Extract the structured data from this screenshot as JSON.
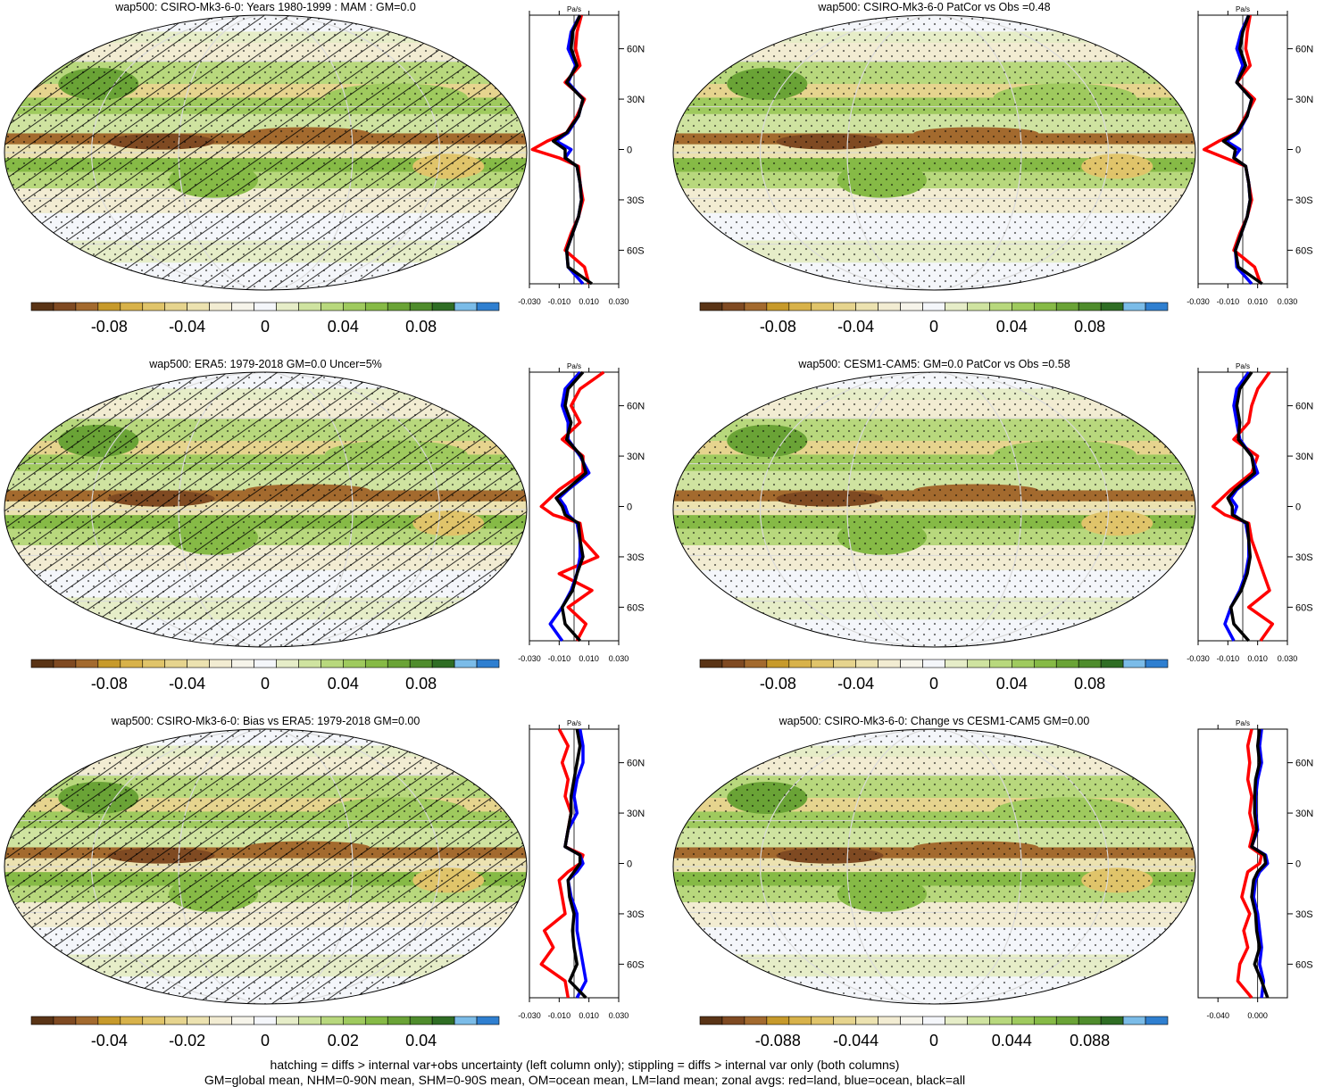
{
  "colors": {
    "background": "#ffffff",
    "land_line": "#d9d9d9",
    "zonal_land": "#ff0000",
    "zonal_ocean": "#0000ff",
    "zonal_all": "#000000",
    "palette": [
      "#5a3416",
      "#7f4a22",
      "#a36a2e",
      "#c79a2b",
      "#d8b24a",
      "#e0c46a",
      "#e6d48e",
      "#ece2b0",
      "#f2ecd2",
      "#f6f4ea",
      "#f4f6fa",
      "#e6edc8",
      "#cfe3a0",
      "#b8d87d",
      "#9fca5e",
      "#86ba46",
      "#6aa336",
      "#4f8c2c",
      "#2f6d24",
      "#7bbce8",
      "#2f7fd0"
    ]
  },
  "footer": {
    "line1": "hatching = diffs > internal var+obs uncertainty (left column only); stippling = diffs > internal var only (both columns)",
    "line2": "GM=global mean, NHM=0-90N mean, SHM=0-90S mean, OM=ocean mean, LM=land mean; zonal avgs: red=land, blue=ocean, black=all"
  },
  "chart_data": [
    {
      "type": "heatmap",
      "title": "wap500: CSIRO-Mk3-6-0: Years 1980-1999 : MAM : GM=0.0",
      "colorbar_ticks": [
        "-0.08",
        "-0.04",
        "0",
        "0.04",
        "0.08"
      ],
      "colorbar_range": [
        -0.12,
        0.12
      ],
      "hatched": true,
      "zonal": {
        "units": "Pa/s",
        "x_ticks": [
          "-0.030",
          "-0.010",
          "0.010",
          "0.030"
        ],
        "xlim": [
          -0.03,
          0.03
        ],
        "y_ticks": [
          "60N",
          "30N",
          "0",
          "30S",
          "60S"
        ],
        "lat": [
          80,
          70,
          60,
          50,
          40,
          30,
          20,
          10,
          5,
          0,
          -5,
          -10,
          -20,
          -30,
          -40,
          -50,
          -60,
          -70,
          -80
        ],
        "land": [
          0.005,
          0.002,
          0.001,
          0.004,
          -0.006,
          0.007,
          0.002,
          -0.005,
          -0.018,
          -0.028,
          -0.01,
          0.003,
          0.004,
          0.006,
          0.003,
          -0.002,
          -0.006,
          0.007,
          0.01
        ],
        "ocean": [
          0.004,
          -0.002,
          -0.004,
          0.001,
          -0.004,
          0.006,
          0.003,
          -0.004,
          -0.012,
          -0.002,
          -0.006,
          0.002,
          0.004,
          0.005,
          0.003,
          -0.001,
          -0.005,
          -0.004,
          0.006
        ],
        "all": [
          0.004,
          -0.001,
          -0.002,
          0.002,
          -0.005,
          0.006,
          0.003,
          -0.005,
          -0.014,
          -0.006,
          -0.006,
          0.002,
          0.004,
          0.005,
          0.003,
          -0.001,
          -0.005,
          -0.004,
          0.012
        ]
      }
    },
    {
      "type": "heatmap",
      "title": "wap500: CSIRO-Mk3-6-0 PatCor vs Obs =0.48",
      "colorbar_ticks": [
        "-0.08",
        "-0.04",
        "0",
        "0.04",
        "0.08"
      ],
      "colorbar_range": [
        -0.12,
        0.12
      ],
      "hatched": false,
      "zonal": {
        "units": "Pa/s",
        "x_ticks": [
          "-0.030",
          "-0.010",
          "0.010",
          "0.030"
        ],
        "xlim": [
          -0.03,
          0.03
        ],
        "y_ticks": [
          "60N",
          "30N",
          "0",
          "30S",
          "60S"
        ],
        "lat": [
          80,
          70,
          60,
          50,
          40,
          30,
          20,
          10,
          5,
          0,
          -5,
          -10,
          -20,
          -30,
          -40,
          -50,
          -60,
          -70,
          -80
        ],
        "land": [
          0.005,
          0.003,
          0.002,
          0.005,
          -0.004,
          0.008,
          0.002,
          -0.004,
          -0.016,
          -0.026,
          -0.012,
          0.002,
          0.004,
          0.006,
          0.003,
          -0.002,
          -0.006,
          0.008,
          0.012
        ],
        "ocean": [
          0.004,
          -0.001,
          -0.004,
          0.0,
          -0.004,
          0.006,
          0.003,
          -0.003,
          -0.011,
          -0.002,
          -0.006,
          0.002,
          0.004,
          0.005,
          0.003,
          -0.001,
          -0.005,
          -0.004,
          0.006
        ],
        "all": [
          0.004,
          0.0,
          -0.002,
          0.002,
          -0.004,
          0.006,
          0.003,
          -0.004,
          -0.013,
          -0.005,
          -0.006,
          0.002,
          0.004,
          0.005,
          0.003,
          -0.001,
          -0.005,
          -0.003,
          0.013
        ]
      }
    },
    {
      "type": "heatmap",
      "title": "wap500: ERA5: 1979-2018 GM=0.0 Uncer=5%",
      "colorbar_ticks": [
        "-0.08",
        "-0.04",
        "0",
        "0.04",
        "0.08"
      ],
      "colorbar_range": [
        -0.12,
        0.12
      ],
      "hatched": true,
      "zonal": {
        "units": "Pa/s",
        "x_ticks": [
          "-0.030",
          "-0.010",
          "0.010",
          "0.030"
        ],
        "xlim": [
          -0.03,
          0.03
        ],
        "y_ticks": [
          "60N",
          "30N",
          "0",
          "30S",
          "60S"
        ],
        "lat": [
          80,
          70,
          60,
          50,
          40,
          30,
          20,
          10,
          5,
          0,
          -5,
          -10,
          -20,
          -30,
          -40,
          -50,
          -60,
          -70,
          -80
        ],
        "land": [
          0.02,
          0.004,
          -0.002,
          0.004,
          -0.008,
          0.006,
          0.006,
          -0.01,
          -0.016,
          -0.022,
          -0.014,
          0.004,
          0.006,
          0.016,
          -0.01,
          0.012,
          -0.004,
          0.008,
          0.002
        ],
        "ocean": [
          0.004,
          -0.006,
          -0.008,
          -0.004,
          -0.004,
          0.004,
          0.01,
          -0.004,
          -0.01,
          -0.006,
          -0.004,
          0.002,
          0.004,
          0.004,
          0.002,
          -0.002,
          -0.008,
          -0.016,
          -0.008
        ],
        "all": [
          0.006,
          -0.004,
          -0.006,
          -0.002,
          -0.005,
          0.005,
          0.008,
          -0.005,
          -0.012,
          -0.008,
          -0.006,
          0.003,
          0.004,
          0.006,
          0.002,
          -0.001,
          -0.008,
          -0.006,
          0.004
        ]
      }
    },
    {
      "type": "heatmap",
      "title": "wap500: CESM1-CAM5: GM=0.0 PatCor vs Obs =0.58",
      "colorbar_ticks": [
        "-0.08",
        "-0.04",
        "0",
        "0.04",
        "0.08"
      ],
      "colorbar_range": [
        -0.12,
        0.12
      ],
      "hatched": false,
      "zonal": {
        "units": "Pa/s",
        "x_ticks": [
          "-0.030",
          "-0.010",
          "0.010",
          "0.030"
        ],
        "xlim": [
          -0.03,
          0.03
        ],
        "y_ticks": [
          "60N",
          "30N",
          "0",
          "30S",
          "60S"
        ],
        "lat": [
          80,
          70,
          60,
          50,
          40,
          30,
          20,
          10,
          5,
          0,
          -5,
          -10,
          -20,
          -30,
          -40,
          -50,
          -60,
          -70,
          -80
        ],
        "land": [
          0.018,
          0.01,
          0.006,
          0.004,
          -0.006,
          0.01,
          0.006,
          -0.008,
          -0.014,
          -0.02,
          -0.012,
          0.004,
          0.006,
          0.01,
          0.014,
          0.018,
          0.004,
          0.02,
          0.012
        ],
        "ocean": [
          0.004,
          -0.004,
          -0.006,
          -0.004,
          -0.002,
          0.006,
          0.01,
          -0.004,
          -0.008,
          -0.004,
          -0.006,
          0.002,
          0.004,
          0.004,
          0.002,
          -0.002,
          -0.008,
          -0.012,
          -0.006
        ],
        "all": [
          0.006,
          -0.002,
          -0.004,
          -0.002,
          -0.003,
          0.006,
          0.008,
          -0.005,
          -0.01,
          -0.007,
          -0.007,
          0.003,
          0.004,
          0.005,
          0.003,
          -0.001,
          -0.008,
          -0.006,
          0.004
        ]
      }
    },
    {
      "type": "heatmap",
      "title": "wap500: CSIRO-Mk3-6-0: Bias vs ERA5: 1979-2018 GM=0.00",
      "colorbar_ticks": [
        "-0.04",
        "-0.02",
        "0",
        "0.02",
        "0.04"
      ],
      "colorbar_range": [
        -0.06,
        0.06
      ],
      "hatched": true,
      "zonal": {
        "units": "Pa/s",
        "x_ticks": [
          "-0.030",
          "-0.010",
          "0.010",
          "0.030"
        ],
        "xlim": [
          -0.03,
          0.03
        ],
        "y_ticks": [
          "60N",
          "30N",
          "0",
          "30S",
          "60S"
        ],
        "lat": [
          80,
          70,
          60,
          50,
          40,
          30,
          20,
          10,
          5,
          0,
          -5,
          -10,
          -20,
          -30,
          -40,
          -50,
          -60,
          -70,
          -80
        ],
        "land": [
          -0.01,
          -0.004,
          -0.008,
          -0.004,
          -0.006,
          -0.002,
          -0.004,
          -0.006,
          0.006,
          0.004,
          -0.004,
          -0.01,
          -0.008,
          -0.006,
          -0.02,
          -0.014,
          -0.022,
          -0.006,
          -0.004
        ],
        "ocean": [
          0.004,
          0.006,
          0.006,
          0.002,
          0.0,
          0.002,
          -0.004,
          -0.006,
          0.004,
          0.006,
          0.002,
          -0.004,
          -0.002,
          0.002,
          0.002,
          0.004,
          0.006,
          0.008,
          0.002
        ],
        "all": [
          0.002,
          0.004,
          0.002,
          0.0,
          -0.002,
          -0.002,
          -0.004,
          -0.006,
          0.004,
          0.004,
          0.0,
          -0.004,
          -0.003,
          0.0,
          -0.001,
          0.0,
          0.002,
          -0.003,
          0.008
        ]
      }
    },
    {
      "type": "heatmap",
      "title": "wap500: CSIRO-Mk3-6-0: Change vs CESM1-CAM5 GM=0.00",
      "colorbar_ticks": [
        "-0.088",
        "-0.044",
        "0",
        "0.044",
        "0.088"
      ],
      "colorbar_range": [
        -0.132,
        0.132
      ],
      "hatched": false,
      "zonal": {
        "units": "Pa/s",
        "x_ticks": [
          "-0.040",
          "0.000"
        ],
        "xlim": [
          -0.06,
          0.03
        ],
        "y_ticks": [
          "60N",
          "30N",
          "0",
          "30S",
          "60S"
        ],
        "lat": [
          80,
          70,
          60,
          50,
          40,
          30,
          20,
          10,
          5,
          0,
          -5,
          -10,
          -20,
          -30,
          -40,
          -50,
          -60,
          -70,
          -80
        ],
        "land": [
          -0.006,
          -0.01,
          -0.008,
          -0.01,
          -0.006,
          -0.008,
          -0.004,
          -0.008,
          0.004,
          0.002,
          -0.01,
          -0.012,
          -0.016,
          -0.008,
          -0.014,
          -0.01,
          -0.018,
          -0.02,
          -0.006
        ],
        "ocean": [
          0.004,
          0.002,
          0.004,
          0.0,
          -0.002,
          -0.002,
          0.0,
          -0.006,
          0.008,
          0.01,
          0.002,
          -0.002,
          -0.004,
          0.0,
          0.002,
          0.004,
          0.002,
          0.006,
          0.004
        ],
        "all": [
          0.002,
          0.0,
          0.002,
          -0.002,
          -0.003,
          -0.003,
          -0.001,
          -0.006,
          0.007,
          0.008,
          0.0,
          -0.004,
          -0.006,
          -0.002,
          -0.001,
          0.002,
          -0.003,
          0.004,
          0.01
        ]
      }
    }
  ]
}
